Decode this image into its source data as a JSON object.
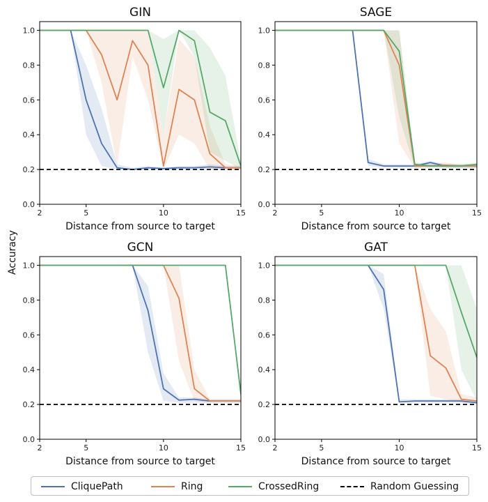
{
  "figure": {
    "ylabel": "Accuracy",
    "legend": [
      {
        "label": "CliquePath",
        "color": "#4c72b0",
        "style": "solid"
      },
      {
        "label": "Ring",
        "color": "#dd8452",
        "style": "solid"
      },
      {
        "label": "CrossedRing",
        "color": "#55a868",
        "style": "solid"
      },
      {
        "label": "Random Guessing",
        "color": "#000000",
        "style": "dashed"
      }
    ]
  },
  "chart_data": [
    {
      "type": "line",
      "title": "GIN",
      "xlabel": "Distance from source to target",
      "ylabel": "Accuracy",
      "xlim": [
        2,
        15
      ],
      "ylim": [
        0,
        1.05
      ],
      "xticks": [
        2,
        5,
        10,
        15
      ],
      "yticks": [
        "0.0",
        "0.2",
        "0.4",
        "0.6",
        "0.8",
        "1.0"
      ],
      "baseline": 0.2,
      "x": [
        2,
        3,
        4,
        5,
        6,
        7,
        8,
        9,
        10,
        11,
        12,
        13,
        14,
        15
      ],
      "series": [
        {
          "name": "CliquePath",
          "color": "#4c72b0",
          "values": [
            1.0,
            1.0,
            1.0,
            0.6,
            0.35,
            0.21,
            0.2,
            0.21,
            0.205,
            0.21,
            0.21,
            0.215,
            0.21,
            0.21
          ],
          "lower": [
            1.0,
            1.0,
            1.0,
            0.4,
            0.22,
            0.2,
            0.2,
            0.2,
            0.2,
            0.2,
            0.2,
            0.2,
            0.2,
            0.2
          ],
          "upper": [
            1.0,
            1.0,
            1.0,
            0.8,
            0.55,
            0.23,
            0.21,
            0.22,
            0.21,
            0.22,
            0.22,
            0.23,
            0.22,
            0.22
          ]
        },
        {
          "name": "Ring",
          "color": "#dd8452",
          "values": [
            1.0,
            1.0,
            1.0,
            1.0,
            0.86,
            0.6,
            0.94,
            0.8,
            0.22,
            0.66,
            0.6,
            0.29,
            0.21,
            0.21
          ],
          "lower": [
            1.0,
            1.0,
            1.0,
            1.0,
            0.7,
            0.22,
            0.85,
            0.6,
            0.2,
            0.4,
            0.35,
            0.2,
            0.2,
            0.2
          ],
          "upper": [
            1.0,
            1.0,
            1.0,
            1.0,
            1.0,
            1.0,
            1.0,
            1.0,
            0.4,
            0.95,
            0.85,
            0.45,
            0.23,
            0.22
          ]
        },
        {
          "name": "CrossedRing",
          "color": "#55a868",
          "values": [
            1.0,
            1.0,
            1.0,
            1.0,
            1.0,
            1.0,
            1.0,
            1.0,
            0.67,
            1.0,
            0.94,
            0.53,
            0.48,
            0.22
          ],
          "lower": [
            1.0,
            1.0,
            1.0,
            1.0,
            1.0,
            1.0,
            1.0,
            1.0,
            0.4,
            1.0,
            0.85,
            0.3,
            0.25,
            0.2
          ],
          "upper": [
            1.0,
            1.0,
            1.0,
            1.0,
            1.0,
            1.0,
            1.0,
            1.0,
            0.95,
            1.0,
            1.0,
            0.9,
            0.74,
            0.24
          ]
        }
      ]
    },
    {
      "type": "line",
      "title": "SAGE",
      "xlabel": "Distance from source to target",
      "ylabel": "Accuracy",
      "xlim": [
        2,
        15
      ],
      "ylim": [
        0,
        1.05
      ],
      "xticks": [
        2,
        5,
        10,
        15
      ],
      "yticks": [
        "0.0",
        "0.2",
        "0.4",
        "0.6",
        "0.8",
        "1.0"
      ],
      "baseline": 0.2,
      "x": [
        2,
        3,
        4,
        5,
        6,
        7,
        8,
        9,
        10,
        11,
        12,
        13,
        14,
        15
      ],
      "series": [
        {
          "name": "CliquePath",
          "color": "#4c72b0",
          "values": [
            1.0,
            1.0,
            1.0,
            1.0,
            1.0,
            1.0,
            0.24,
            0.22,
            0.22,
            0.22,
            0.24,
            0.22,
            0.22,
            0.22
          ],
          "lower": [
            1.0,
            1.0,
            1.0,
            1.0,
            1.0,
            1.0,
            0.22,
            0.21,
            0.21,
            0.21,
            0.22,
            0.21,
            0.21,
            0.21
          ],
          "upper": [
            1.0,
            1.0,
            1.0,
            1.0,
            1.0,
            1.0,
            0.26,
            0.23,
            0.23,
            0.23,
            0.25,
            0.23,
            0.23,
            0.23
          ]
        },
        {
          "name": "Ring",
          "color": "#dd8452",
          "values": [
            1.0,
            1.0,
            1.0,
            1.0,
            1.0,
            1.0,
            1.0,
            1.0,
            0.8,
            0.22,
            0.22,
            0.225,
            0.22,
            0.22
          ],
          "lower": [
            1.0,
            1.0,
            1.0,
            1.0,
            1.0,
            1.0,
            1.0,
            1.0,
            0.35,
            0.21,
            0.21,
            0.21,
            0.21,
            0.21
          ],
          "upper": [
            1.0,
            1.0,
            1.0,
            1.0,
            1.0,
            1.0,
            1.0,
            1.0,
            1.0,
            0.23,
            0.23,
            0.24,
            0.23,
            0.23
          ]
        },
        {
          "name": "CrossedRing",
          "color": "#55a868",
          "values": [
            1.0,
            1.0,
            1.0,
            1.0,
            1.0,
            1.0,
            1.0,
            1.0,
            0.88,
            0.23,
            0.22,
            0.22,
            0.22,
            0.23
          ],
          "lower": [
            1.0,
            1.0,
            1.0,
            1.0,
            1.0,
            1.0,
            1.0,
            1.0,
            0.5,
            0.21,
            0.21,
            0.21,
            0.21,
            0.21
          ],
          "upper": [
            1.0,
            1.0,
            1.0,
            1.0,
            1.0,
            1.0,
            1.0,
            1.0,
            1.0,
            0.24,
            0.23,
            0.23,
            0.23,
            0.24
          ]
        }
      ]
    },
    {
      "type": "line",
      "title": "GCN",
      "xlabel": "Distance from source to target",
      "ylabel": "Accuracy",
      "xlim": [
        2,
        15
      ],
      "ylim": [
        0,
        1.05
      ],
      "xticks": [
        2,
        5,
        10,
        15
      ],
      "yticks": [
        "0.0",
        "0.2",
        "0.4",
        "0.6",
        "0.8",
        "1.0"
      ],
      "baseline": 0.2,
      "x": [
        2,
        3,
        4,
        5,
        6,
        7,
        8,
        9,
        10,
        11,
        12,
        13,
        14,
        15
      ],
      "series": [
        {
          "name": "CliquePath",
          "color": "#4c72b0",
          "values": [
            1.0,
            1.0,
            1.0,
            1.0,
            1.0,
            1.0,
            1.0,
            0.74,
            0.29,
            0.225,
            0.23,
            0.22,
            0.22,
            0.22
          ],
          "lower": [
            1.0,
            1.0,
            1.0,
            1.0,
            1.0,
            1.0,
            1.0,
            0.5,
            0.22,
            0.21,
            0.21,
            0.21,
            0.21,
            0.21
          ],
          "upper": [
            1.0,
            1.0,
            1.0,
            1.0,
            1.0,
            1.0,
            1.0,
            0.88,
            0.38,
            0.24,
            0.24,
            0.23,
            0.23,
            0.23
          ]
        },
        {
          "name": "Ring",
          "color": "#dd8452",
          "values": [
            1.0,
            1.0,
            1.0,
            1.0,
            1.0,
            1.0,
            1.0,
            1.0,
            1.0,
            0.81,
            0.29,
            0.22,
            0.22,
            0.22
          ],
          "lower": [
            1.0,
            1.0,
            1.0,
            1.0,
            1.0,
            1.0,
            1.0,
            1.0,
            1.0,
            0.45,
            0.22,
            0.21,
            0.21,
            0.21
          ],
          "upper": [
            1.0,
            1.0,
            1.0,
            1.0,
            1.0,
            1.0,
            1.0,
            1.0,
            1.0,
            1.0,
            0.4,
            0.23,
            0.23,
            0.23
          ]
        },
        {
          "name": "CrossedRing",
          "color": "#55a868",
          "values": [
            1.0,
            1.0,
            1.0,
            1.0,
            1.0,
            1.0,
            1.0,
            1.0,
            1.0,
            1.0,
            1.0,
            1.0,
            1.0,
            0.26
          ],
          "lower": [
            1.0,
            1.0,
            1.0,
            1.0,
            1.0,
            1.0,
            1.0,
            1.0,
            1.0,
            1.0,
            1.0,
            1.0,
            1.0,
            0.22
          ],
          "upper": [
            1.0,
            1.0,
            1.0,
            1.0,
            1.0,
            1.0,
            1.0,
            1.0,
            1.0,
            1.0,
            1.0,
            1.0,
            1.0,
            0.3
          ]
        }
      ]
    },
    {
      "type": "line",
      "title": "GAT",
      "xlabel": "Distance from source to target",
      "ylabel": "Accuracy",
      "xlim": [
        2,
        15
      ],
      "ylim": [
        0,
        1.05
      ],
      "xticks": [
        2,
        5,
        10,
        15
      ],
      "yticks": [
        "0.0",
        "0.2",
        "0.4",
        "0.6",
        "0.8",
        "1.0"
      ],
      "baseline": 0.2,
      "x": [
        2,
        3,
        4,
        5,
        6,
        7,
        8,
        9,
        10,
        11,
        12,
        13,
        14,
        15
      ],
      "series": [
        {
          "name": "CliquePath",
          "color": "#4c72b0",
          "values": [
            1.0,
            1.0,
            1.0,
            1.0,
            1.0,
            1.0,
            1.0,
            0.86,
            0.215,
            0.22,
            0.22,
            0.22,
            0.22,
            0.21
          ],
          "lower": [
            1.0,
            1.0,
            1.0,
            1.0,
            1.0,
            1.0,
            1.0,
            0.75,
            0.21,
            0.21,
            0.21,
            0.21,
            0.21,
            0.2
          ],
          "upper": [
            1.0,
            1.0,
            1.0,
            1.0,
            1.0,
            1.0,
            1.0,
            0.95,
            0.23,
            0.23,
            0.23,
            0.23,
            0.23,
            0.22
          ]
        },
        {
          "name": "Ring",
          "color": "#dd8452",
          "values": [
            1.0,
            1.0,
            1.0,
            1.0,
            1.0,
            1.0,
            1.0,
            1.0,
            1.0,
            1.0,
            0.48,
            0.41,
            0.23,
            0.22
          ],
          "lower": [
            1.0,
            1.0,
            1.0,
            1.0,
            1.0,
            1.0,
            1.0,
            1.0,
            1.0,
            1.0,
            0.25,
            0.23,
            0.21,
            0.21
          ],
          "upper": [
            1.0,
            1.0,
            1.0,
            1.0,
            1.0,
            1.0,
            1.0,
            1.0,
            1.0,
            1.0,
            0.75,
            0.62,
            0.26,
            0.24
          ]
        },
        {
          "name": "CrossedRing",
          "color": "#55a868",
          "values": [
            1.0,
            1.0,
            1.0,
            1.0,
            1.0,
            1.0,
            1.0,
            1.0,
            1.0,
            1.0,
            1.0,
            1.0,
            0.73,
            0.47
          ],
          "lower": [
            1.0,
            1.0,
            1.0,
            1.0,
            1.0,
            1.0,
            1.0,
            1.0,
            1.0,
            1.0,
            1.0,
            1.0,
            0.4,
            0.22
          ],
          "upper": [
            1.0,
            1.0,
            1.0,
            1.0,
            1.0,
            1.0,
            1.0,
            1.0,
            1.0,
            1.0,
            1.0,
            1.0,
            1.0,
            0.75
          ]
        }
      ]
    }
  ]
}
